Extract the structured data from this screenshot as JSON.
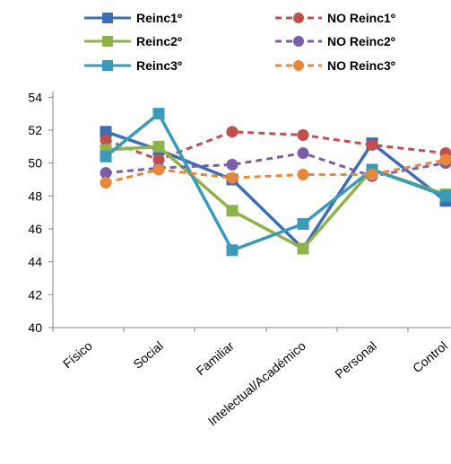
{
  "chart_data": {
    "type": "line",
    "categories": [
      "Físico",
      "Social",
      "Familiar",
      "Intelectual/Académico",
      "Personal",
      "Control"
    ],
    "ylim": [
      40,
      55
    ],
    "yticks": [
      40,
      42,
      44,
      46,
      48,
      50,
      52,
      54
    ],
    "grid": false,
    "legend_position": "top",
    "series": [
      {
        "name": "Reinc1º",
        "color": "#3e6db3",
        "dash": "solid",
        "marker": "square",
        "values": [
          51.9,
          50.8,
          49.0,
          44.8,
          51.2,
          47.7
        ]
      },
      {
        "name": "NO Reinc1º",
        "color": "#c0504d",
        "dash": "dashed",
        "marker": "circle",
        "values": [
          51.4,
          50.2,
          51.9,
          51.7,
          51.1,
          50.6
        ]
      },
      {
        "name": "Reinc2º",
        "color": "#8fb249",
        "dash": "solid",
        "marker": "square",
        "values": [
          50.8,
          51.0,
          47.1,
          44.8,
          49.6,
          48.1
        ]
      },
      {
        "name": "NO Reinc2º",
        "color": "#7b5ea7",
        "dash": "dashed",
        "marker": "circle",
        "values": [
          49.4,
          49.7,
          49.9,
          50.6,
          49.2,
          50.0
        ]
      },
      {
        "name": "Reinc3º",
        "color": "#3a9bb8",
        "dash": "solid",
        "marker": "square",
        "values": [
          50.4,
          53.0,
          44.7,
          46.3,
          49.6,
          48.0
        ]
      },
      {
        "name": "NO Reinc3º",
        "color": "#e8883c",
        "dash": "dashed",
        "marker": "circle",
        "values": [
          48.8,
          49.6,
          49.1,
          49.3,
          49.3,
          50.2
        ]
      }
    ]
  }
}
